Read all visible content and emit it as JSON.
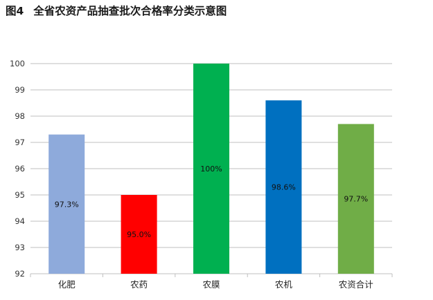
{
  "figure": {
    "number": "图4",
    "caption": "全省农资产品抽查批次合格率分类示意图"
  },
  "chart_data": {
    "type": "bar",
    "categories": [
      "化肥",
      "农药",
      "农膜",
      "农机",
      "农资合计"
    ],
    "values": [
      97.3,
      95.0,
      100,
      98.6,
      97.7
    ],
    "data_labels": [
      "97.3%",
      "95.0%",
      "100%",
      "98.6%",
      "97.7%"
    ],
    "colors": [
      "#8eaadb",
      "#ff0000",
      "#00b050",
      "#0070c0",
      "#70ad47"
    ],
    "yticks": [
      92,
      93,
      94,
      95,
      96,
      97,
      98,
      99,
      100
    ],
    "ylim": [
      92,
      100
    ],
    "grid": true,
    "title": "",
    "xlabel": "",
    "ylabel": ""
  }
}
